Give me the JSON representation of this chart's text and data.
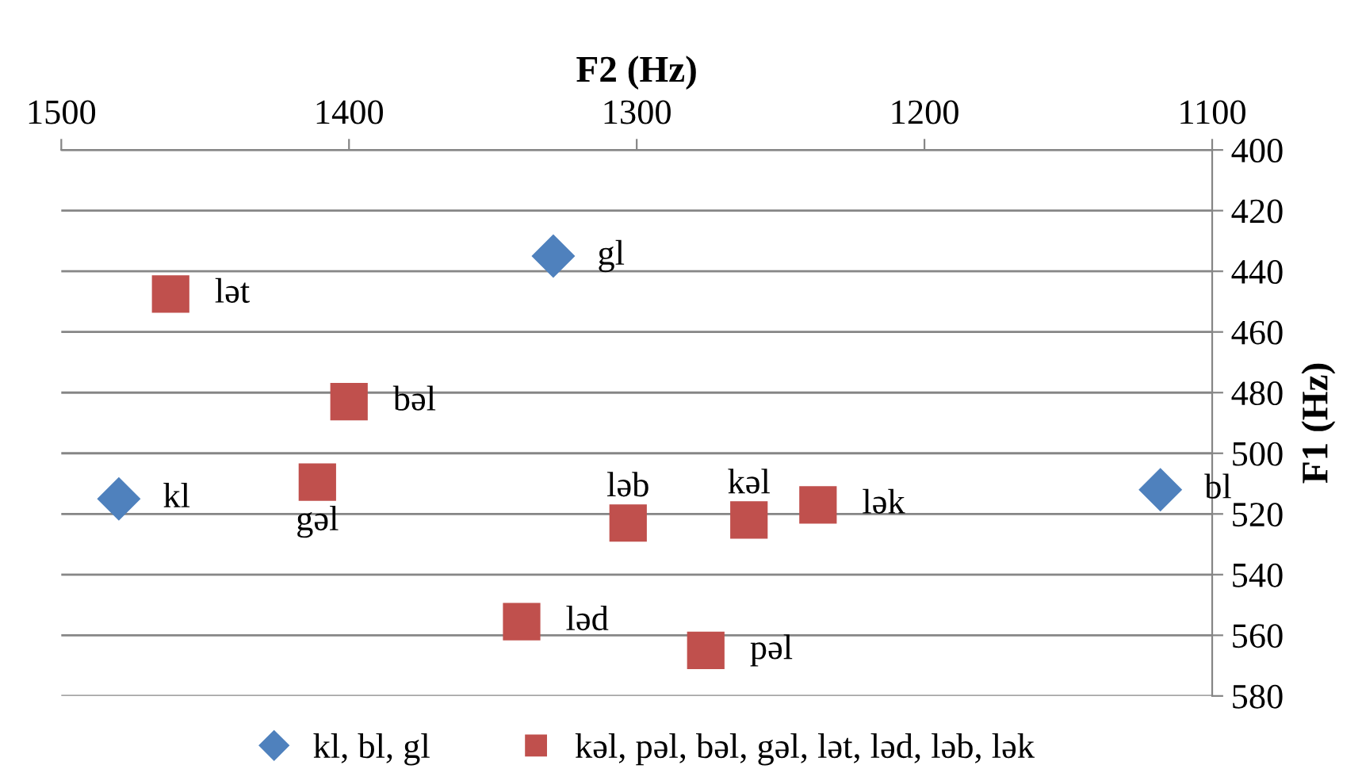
{
  "chart_data": {
    "type": "scatter",
    "xlabel": "F2 (Hz)",
    "ylabel": "F1 (Hz)",
    "xlim": [
      1500,
      1100
    ],
    "xticks": [
      1500,
      1400,
      1300,
      1200,
      1100
    ],
    "ylim": [
      580,
      400
    ],
    "yticks": [
      400,
      420,
      440,
      460,
      480,
      500,
      520,
      540,
      560,
      580
    ],
    "grid": "y",
    "legend": "bottom",
    "series": [
      {
        "name": "kl, bl, gl",
        "color": "#4f81bd",
        "marker": "diamond",
        "x": [
          1480,
          1118,
          1329
        ],
        "values": [
          515,
          512,
          435
        ]
      },
      {
        "name": "kəl, pəl, bəl, gəl, lət, ləd, ləb, lək",
        "color": "#c0504d",
        "marker": "square",
        "x": [
          1261,
          1276,
          1400,
          1411,
          1462,
          1340,
          1303,
          1237
        ],
        "values": [
          522,
          565,
          483,
          509.5,
          447.5,
          555.5,
          523,
          517
        ]
      }
    ],
    "annotations": [
      {
        "text": "kl",
        "x": 1480,
        "y": 515
      },
      {
        "text": "bl",
        "x": 1118,
        "y": 512
      },
      {
        "text": "gl",
        "x": 1329,
        "y": 435
      },
      {
        "text": "kəl",
        "x": 1261,
        "y": 522
      },
      {
        "text": "pəl",
        "x": 1276,
        "y": 565
      },
      {
        "text": "bəl",
        "x": 1400,
        "y": 483
      },
      {
        "text": "gəl",
        "x": 1411,
        "y": 509.5
      },
      {
        "text": "lət",
        "x": 1462,
        "y": 447.5
      },
      {
        "text": "ləd",
        "x": 1340,
        "y": 555.5
      },
      {
        "text": "ləb",
        "x": 1303,
        "y": 523
      },
      {
        "text": "lək",
        "x": 1237,
        "y": 517
      }
    ]
  }
}
